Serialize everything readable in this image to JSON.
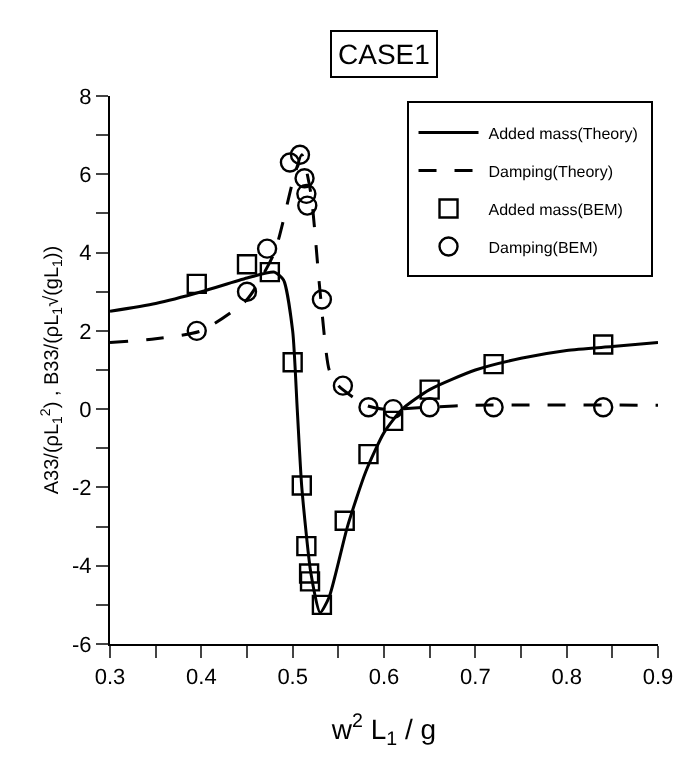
{
  "chart_data": {
    "type": "line",
    "title": "CASE1",
    "xlabel": "w$^{2}$ L$_{1}$ / g",
    "ylabel": "A33/(ρL$_{1}$$^{2}$) , B33/(ρL$_{1}$√(gL$_{1}$))",
    "xlim": [
      0.3,
      0.9
    ],
    "ylim": [
      -6,
      8
    ],
    "xticks": [
      0.3,
      {
        "value": 0.35,
        "label": null
      },
      0.4,
      {
        "value": 0.45,
        "label": null
      },
      0.5,
      {
        "value": 0.55,
        "label": null
      },
      0.6,
      {
        "value": 0.65,
        "label": null
      },
      0.7,
      {
        "value": 0.75,
        "label": null
      },
      0.8,
      {
        "value": 0.85,
        "label": null
      },
      0.9
    ],
    "yticks": [
      -6,
      {
        "value": -5,
        "label": null
      },
      -4,
      {
        "value": -3,
        "label": null
      },
      -2,
      {
        "value": -1,
        "label": null
      },
      0,
      {
        "value": 1,
        "label": null
      },
      2,
      {
        "value": 3,
        "label": null
      },
      4,
      {
        "value": 5,
        "label": null
      },
      6,
      {
        "value": 7,
        "label": null
      },
      8
    ],
    "legend": "top right",
    "series": [
      {
        "name": "Added mass(Theory)",
        "color": "#000000",
        "line_style": "solid",
        "marker": "none",
        "x": [
          0.3,
          0.35,
          0.4,
          0.45,
          0.48,
          0.49,
          0.5,
          0.505,
          0.51,
          0.52,
          0.53,
          0.54,
          0.56,
          0.58,
          0.6,
          0.62,
          0.65,
          0.7,
          0.75,
          0.8,
          0.85,
          0.9
        ],
        "values": [
          2.5,
          2.7,
          3.0,
          3.35,
          3.5,
          3.3,
          2.0,
          0,
          -2,
          -4.2,
          -5.2,
          -4.8,
          -3.0,
          -1.6,
          -0.6,
          0.0,
          0.5,
          1.0,
          1.3,
          1.5,
          1.6,
          1.7
        ]
      },
      {
        "name": "Damping(Theory)",
        "color": "#000000",
        "line_style": "dashed",
        "marker": "none",
        "x": [
          0.3,
          0.35,
          0.4,
          0.45,
          0.48,
          0.5,
          0.51,
          0.52,
          0.53,
          0.54,
          0.55,
          0.58,
          0.6,
          0.65,
          0.7,
          0.9
        ],
        "values": [
          1.7,
          1.8,
          2.0,
          2.8,
          4.0,
          5.8,
          6.5,
          5.5,
          3.0,
          1.0,
          0.6,
          0.1,
          0.0,
          0.05,
          0.1,
          0.1
        ]
      },
      {
        "name": "Added mass(BEM)",
        "type": "scatter",
        "color": "#000000",
        "marker": "square",
        "x": [
          0.395,
          0.45,
          0.475,
          0.5,
          0.51,
          0.515,
          0.518,
          0.519,
          0.532,
          0.557,
          0.583,
          0.61,
          0.65,
          0.72,
          0.84
        ],
        "values": [
          3.2,
          3.7,
          3.5,
          1.2,
          -1.95,
          -3.5,
          -4.2,
          -4.4,
          -5.0,
          -2.85,
          -1.15,
          -0.3,
          0.5,
          1.15,
          1.65
        ]
      },
      {
        "name": "Damping(BEM)",
        "type": "scatter",
        "color": "#000000",
        "marker": "circle",
        "x": [
          0.395,
          0.45,
          0.472,
          0.497,
          0.508,
          0.513,
          0.515,
          0.516,
          0.532,
          0.555,
          0.583,
          0.61,
          0.65,
          0.72,
          0.84
        ],
        "values": [
          2.0,
          3.0,
          4.1,
          6.3,
          6.5,
          5.9,
          5.5,
          5.2,
          2.8,
          0.6,
          0.05,
          0.0,
          0.05,
          0.05,
          0.05
        ]
      }
    ]
  }
}
